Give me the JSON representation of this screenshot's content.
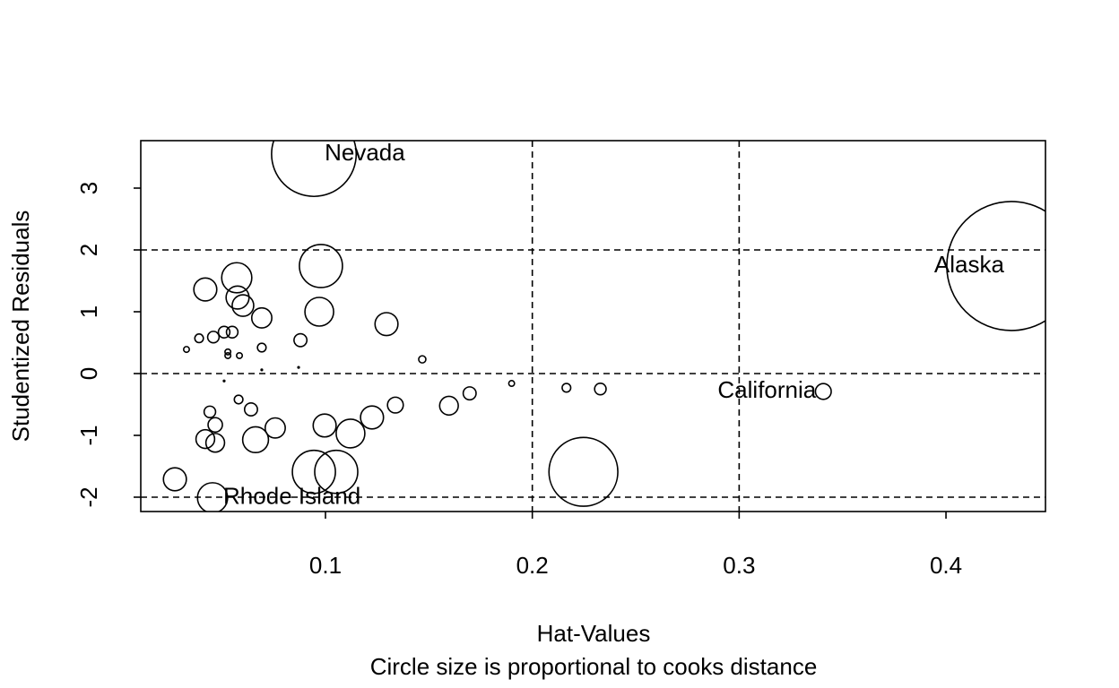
{
  "chart_data": {
    "type": "bubble",
    "x_label": "Hat-Values",
    "subtitle": "Circle size is proportional to cooks distance",
    "y_label": "Studentized Residuals",
    "xlim": [
      0.0107,
      0.4481
    ],
    "ylim": [
      -2.232,
      3.768
    ],
    "xticks": [
      0.1,
      0.2,
      0.3,
      0.4
    ],
    "yticks": [
      -2,
      -1,
      0,
      1,
      2,
      3
    ],
    "reference_lines": {
      "h": [
        -2,
        0,
        2
      ],
      "v": [
        0.2,
        0.3
      ]
    },
    "color": "#000000",
    "x": [
      0.0944,
      0.4316,
      0.3407,
      0.0454,
      0.2247,
      0.0978,
      0.097,
      0.0571,
      0.0575,
      0.0601,
      0.0419,
      0.0692,
      0.1295,
      0.0879,
      0.0549,
      0.051,
      0.0458,
      0.0389,
      0.0328,
      0.0692,
      0.0528,
      0.0528,
      0.0584,
      0.1468,
      0.087,
      0.0692,
      0.051,
      0.19,
      0.2165,
      0.2329,
      0.1697,
      0.1597,
      0.1338,
      0.058,
      0.064,
      0.0441,
      0.0467,
      0.0996,
      0.0757,
      0.1225,
      0.1121,
      0.0662,
      0.0419,
      0.0467,
      0.1052,
      0.0944,
      0.0272
    ],
    "values": [
      3.55,
      1.74,
      -0.29,
      -2.01,
      -1.59,
      1.74,
      1.0,
      1.55,
      1.23,
      1.1,
      1.36,
      0.9,
      0.8,
      0.54,
      0.67,
      0.67,
      0.59,
      0.57,
      0.39,
      0.42,
      0.35,
      0.29,
      0.29,
      0.23,
      0.1,
      0.06,
      -0.12,
      -0.16,
      -0.23,
      -0.25,
      -0.32,
      -0.52,
      -0.51,
      -0.42,
      -0.58,
      -0.62,
      -0.83,
      -0.84,
      -0.88,
      -0.71,
      -0.97,
      -1.07,
      -1.06,
      -1.12,
      -1.59,
      -1.59,
      -1.71
    ],
    "sizes": [
      0.59,
      0.9,
      0.11,
      0.21,
      0.48,
      0.3,
      0.2,
      0.21,
      0.16,
      0.15,
      0.16,
      0.14,
      0.16,
      0.09,
      0.08,
      0.08,
      0.08,
      0.06,
      0.04,
      0.06,
      0.04,
      0.04,
      0.04,
      0.05,
      0.01,
      0.01,
      0.01,
      0.04,
      0.06,
      0.08,
      0.09,
      0.13,
      0.11,
      0.06,
      0.09,
      0.08,
      0.1,
      0.16,
      0.14,
      0.16,
      0.2,
      0.18,
      0.13,
      0.13,
      0.3,
      0.3,
      0.16
    ],
    "point_labels": [
      "Nevada",
      "Alaska",
      "California",
      "Rhode Island",
      null,
      null,
      null,
      null,
      null,
      null,
      null,
      null,
      null,
      null,
      null,
      null,
      null,
      null,
      null,
      null,
      null,
      null,
      null,
      null,
      null,
      null,
      null,
      null,
      null,
      null,
      null,
      null,
      null,
      null,
      null,
      null,
      null,
      null,
      null,
      null,
      null,
      null,
      null,
      null,
      null,
      null,
      null
    ]
  }
}
